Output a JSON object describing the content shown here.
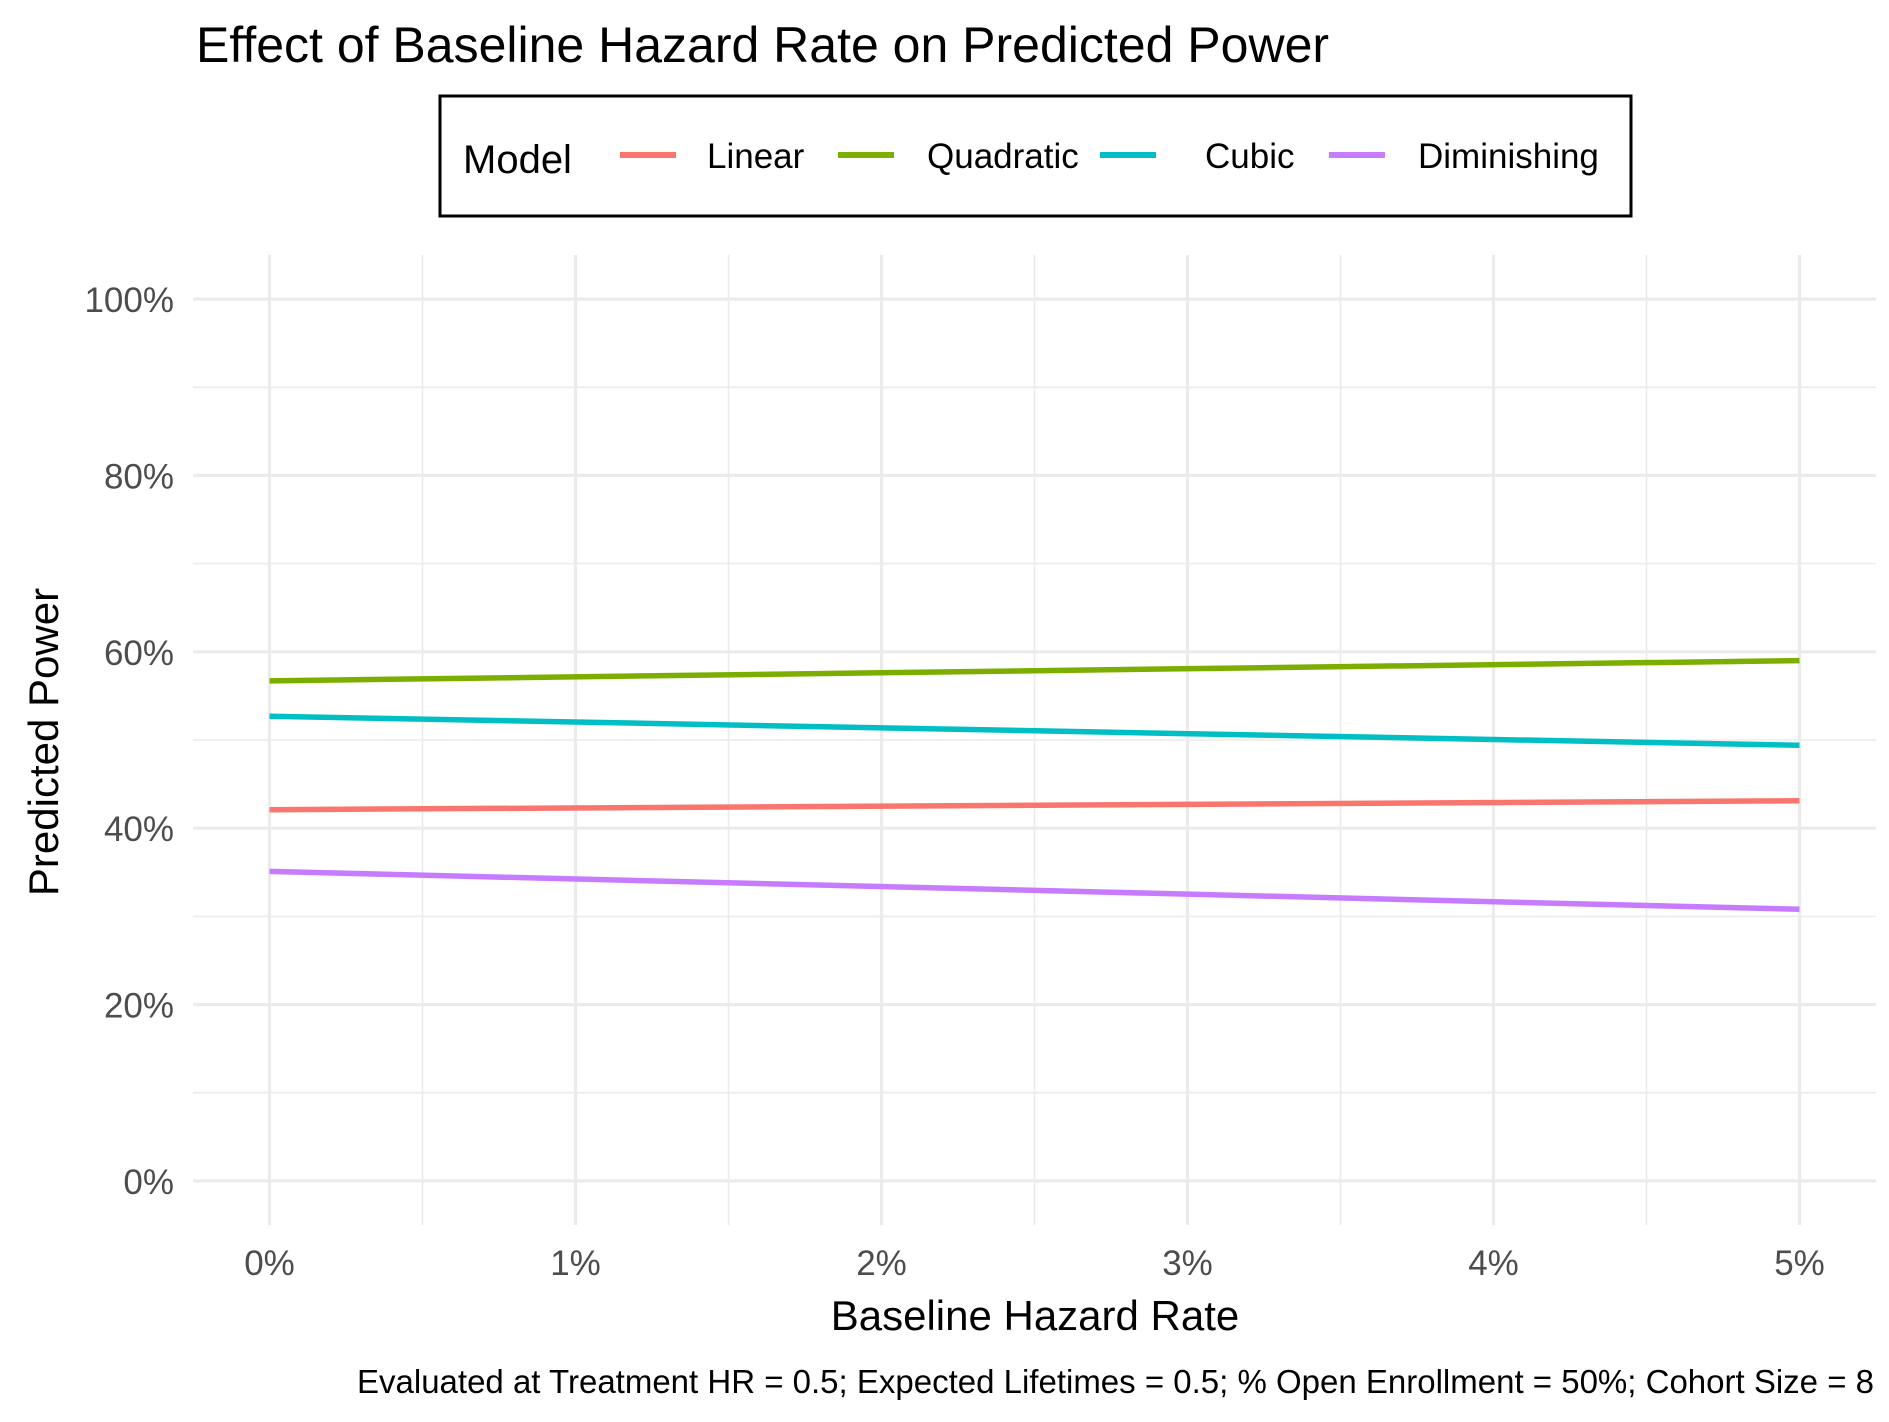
{
  "chart_data": {
    "type": "line",
    "title": "Effect of Baseline Hazard Rate on Predicted Power",
    "xlabel": "Baseline Hazard Rate",
    "ylabel": "Predicted Power",
    "caption": "Evaluated at Treatment HR = 0.5; Expected Lifetimes = 0.5; % Open Enrollment = 50%; Cohort Size = 8",
    "legend": {
      "title": "Model",
      "position": "top"
    },
    "x_ticks": [
      0,
      1,
      2,
      3,
      4,
      5
    ],
    "x_tick_labels": [
      "0%",
      "1%",
      "2%",
      "3%",
      "4%",
      "5%"
    ],
    "y_ticks": [
      0,
      20,
      40,
      60,
      80,
      100
    ],
    "y_tick_labels": [
      "0%",
      "20%",
      "40%",
      "60%",
      "80%",
      "100%"
    ],
    "xlim": [
      -0.25,
      5.25
    ],
    "ylim": [
      -5,
      105
    ],
    "grid": true,
    "series": [
      {
        "name": "Linear",
        "color": "#F8766D",
        "x": [
          0,
          5
        ],
        "values": [
          42.1,
          43.1
        ]
      },
      {
        "name": "Quadratic",
        "color": "#7CAE00",
        "x": [
          0,
          5
        ],
        "values": [
          56.7,
          59.0
        ]
      },
      {
        "name": "Cubic",
        "color": "#00BFC4",
        "x": [
          0,
          5
        ],
        "values": [
          52.7,
          49.4
        ]
      },
      {
        "name": "Diminishing",
        "color": "#C77CFF",
        "x": [
          0,
          5
        ],
        "values": [
          35.1,
          30.8
        ]
      }
    ]
  }
}
